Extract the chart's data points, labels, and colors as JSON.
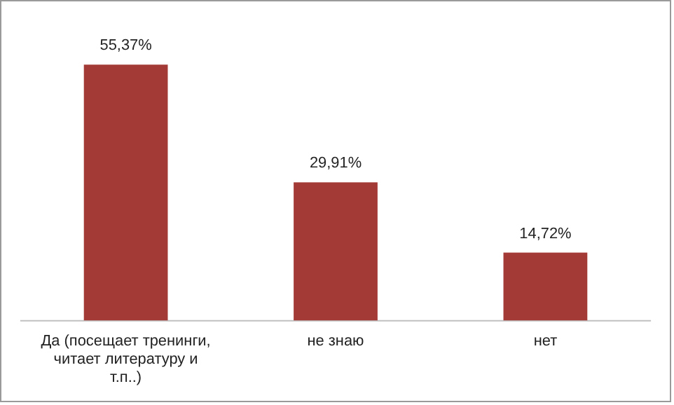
{
  "chart_data": {
    "type": "bar",
    "categories": [
      "Да (посещает тренинги, читает литературу и т.п..)",
      "не знаю",
      "нет"
    ],
    "values": [
      55.37,
      29.91,
      14.72
    ],
    "value_labels": [
      "55,37%",
      "29,91%",
      "14,72%"
    ],
    "color": "#a33a36",
    "grid": false,
    "legend": false
  }
}
